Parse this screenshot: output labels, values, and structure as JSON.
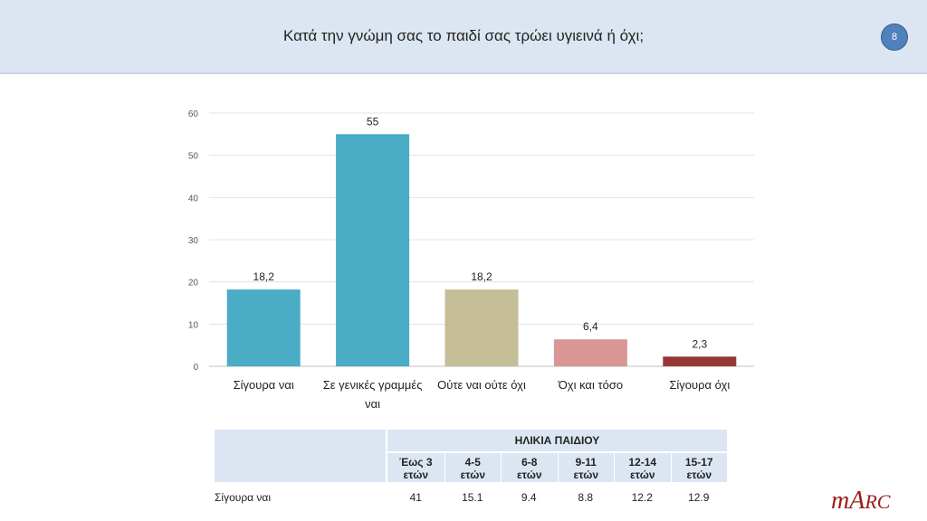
{
  "header": {
    "title": "Κατά την γνώμη σας το παιδί σας τρώει υγιεινά ή όχι;",
    "page_number": "8"
  },
  "chart_data": {
    "type": "bar",
    "categories": [
      "Σίγουρα ναι",
      "Σε γενικές γραμμές ναι",
      "Ούτε ναι ούτε όχι",
      "Όχι και τόσο",
      "Σίγουρα όχι"
    ],
    "values": [
      18.2,
      55,
      18.2,
      6.4,
      2.3
    ],
    "value_labels": [
      "18,2",
      "55",
      "18,2",
      "6,4",
      "2,3"
    ],
    "colors": [
      "#4bacc6",
      "#4bacc6",
      "#c4bd97",
      "#d99694",
      "#953735"
    ],
    "yticks": [
      "0",
      "10",
      "20",
      "30",
      "40",
      "50",
      "60"
    ],
    "ylim": [
      0,
      60
    ],
    "grid": true
  },
  "table": {
    "group_header": "ΗΛΙΚΙΑ ΠΑΙΔΙΟΥ",
    "columns": [
      {
        "l1": "Έως 3",
        "l2": "ετών"
      },
      {
        "l1": "4-5",
        "l2": "ετών"
      },
      {
        "l1": "6-8",
        "l2": "ετών"
      },
      {
        "l1": "9-11",
        "l2": "ετών"
      },
      {
        "l1": "12-14",
        "l2": "ετών"
      },
      {
        "l1": "15-17",
        "l2": "ετών"
      }
    ],
    "row_label": "Σίγουρα ναι",
    "row_values": [
      "41",
      "15.1",
      "9.4",
      "8.8",
      "12.2",
      "12.9"
    ]
  },
  "logo": "mARC"
}
